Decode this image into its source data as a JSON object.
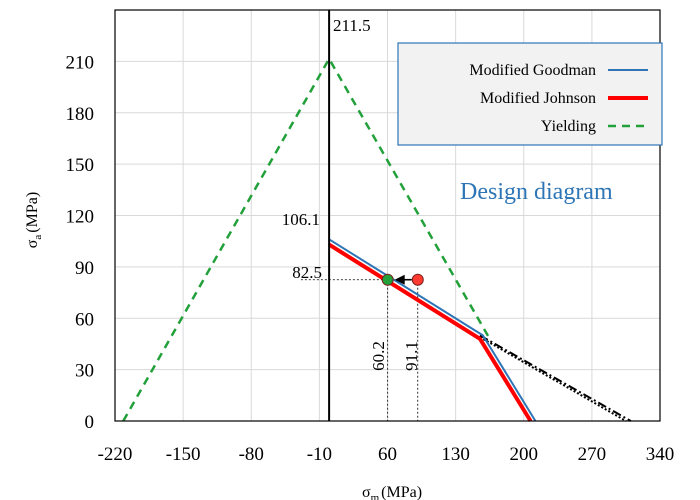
{
  "chart_data": {
    "type": "line",
    "xlabel": "σm (MPa)",
    "xlabel_main": "σ",
    "xlabel_sub": "m",
    "xlabel_unit": "(MPa)",
    "ylabel_main": "σ",
    "ylabel_sub": "a",
    "ylabel_unit": "(MPa)",
    "xlim": [
      -220,
      340
    ],
    "ylim": [
      0,
      240
    ],
    "xticks": [
      -220,
      -150,
      -80,
      -10,
      60,
      130,
      200,
      270,
      340
    ],
    "xtick_labels": [
      "-220",
      "-150",
      "-80",
      "-10",
      "60",
      "130",
      "200",
      "270",
      "340"
    ],
    "yticks": [
      0,
      30,
      60,
      90,
      120,
      150,
      180,
      210
    ],
    "ytick_labels": [
      "0",
      "30",
      "60",
      "90",
      "120",
      "150",
      "180",
      "210"
    ],
    "grid": true,
    "legend_position": "top-right",
    "series": [
      {
        "name": "Modified Goodman",
        "color": "#2e75b6",
        "style": "solid",
        "points": [
          [
            0,
            106.1
          ],
          [
            158,
            50
          ],
          [
            212,
            0
          ]
        ]
      },
      {
        "name": "Modified Johnson",
        "color": "#ff0000",
        "style": "solid-thick",
        "points": [
          [
            0,
            103
          ],
          [
            155,
            48
          ],
          [
            207,
            0
          ]
        ]
      },
      {
        "name": "Yielding",
        "color": "#22a03a",
        "style": "dashed",
        "points": [
          [
            -211.5,
            0
          ],
          [
            0,
            211.5
          ],
          [
            165,
            48
          ]
        ]
      }
    ],
    "extension_lines": [
      {
        "color": "#000000",
        "style": "dash-dot",
        "points": [
          [
            155,
            50
          ],
          [
            310,
            0
          ]
        ]
      },
      {
        "color": "#000000",
        "style": "dotted",
        "points": [
          [
            155,
            49
          ],
          [
            305,
            0
          ]
        ]
      }
    ],
    "markers": [
      {
        "name": "initial-point",
        "x": 91.1,
        "y": 82.5,
        "color": "#ff3b30"
      },
      {
        "name": "design-point",
        "x": 60.2,
        "y": 82.5,
        "color": "#22a03a"
      }
    ],
    "annotations": {
      "peak_value": "211.5",
      "goodman_intercept": "106.1",
      "sigma_a_value": "82.5",
      "sigma_m_design": "60.2",
      "sigma_m_initial": "91.1",
      "diagram_label": "Design diagram"
    },
    "legend": [
      {
        "label": "Modified Goodman",
        "color": "#2e75b6",
        "style": "solid"
      },
      {
        "label": "Modified Johnson",
        "color": "#ff0000",
        "style": "solid-thick"
      },
      {
        "label": "Yielding",
        "color": "#22a03a",
        "style": "dashed"
      }
    ],
    "colors": {
      "goodman": "#2e75b6",
      "johnson": "#ff0000",
      "yielding": "#22a03a",
      "design_label": "#2e75b6",
      "legend_border": "#2e75b6",
      "legend_bg": "#f2f2f2",
      "grid": "#d9d9d9"
    }
  }
}
